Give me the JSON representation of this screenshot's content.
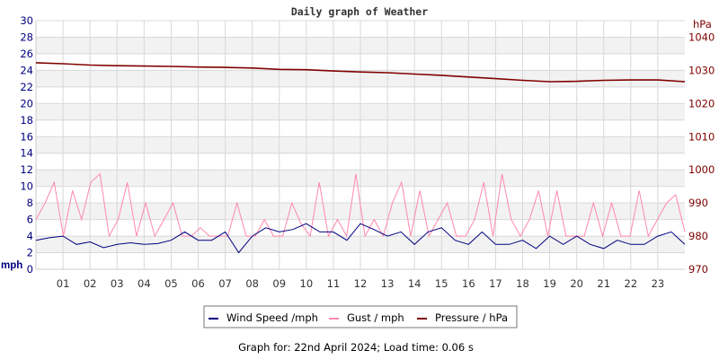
{
  "chart_data": {
    "type": "line",
    "title": "Daily graph of Weather",
    "ylabel_left": "mph",
    "ylabel_right": "hPa",
    "ylim_left": [
      0,
      30
    ],
    "ylim_right": [
      970,
      1045
    ],
    "yticks_left": [
      "0",
      "2",
      "4",
      "6",
      "8",
      "10",
      "12",
      "14",
      "16",
      "18",
      "20",
      "22",
      "24",
      "26",
      "28",
      "30"
    ],
    "yticks_right": [
      "970",
      "980",
      "990",
      "1000",
      "1010",
      "1020",
      "1030",
      "1040"
    ],
    "xticks": [
      "01",
      "02",
      "03",
      "04",
      "05",
      "06",
      "07",
      "08",
      "09",
      "10",
      "11",
      "12",
      "13",
      "14",
      "15",
      "16",
      "17",
      "18",
      "19",
      "20",
      "21",
      "22",
      "23"
    ],
    "xlim_hours": [
      0,
      24
    ],
    "grid": true,
    "legend_position": "bottom",
    "series": [
      {
        "name": "Wind Speed /mph",
        "color": "#000080",
        "axis": "left",
        "values": [
          3.5,
          3.8,
          4,
          3,
          3.3,
          2.6,
          3,
          3.2,
          3,
          3.1,
          3.5,
          4.5,
          3.5,
          3.5,
          4.5,
          2,
          4,
          5,
          4.5,
          4.8,
          5.5,
          4.5,
          4.5,
          3.5,
          5.5,
          4.8,
          4,
          4.5,
          3,
          4.5,
          5,
          3.5,
          3,
          4.5,
          3,
          3,
          3.5,
          2.5,
          4,
          3,
          4,
          3,
          2.5,
          3.5,
          3,
          3,
          4,
          4.5,
          3
        ]
      },
      {
        "name": "Gust / mph",
        "color": "#ff88aa",
        "axis": "left",
        "values": [
          6,
          8,
          10.5,
          4,
          9.5,
          6,
          10.5,
          11.5,
          4,
          6,
          10.5,
          4,
          8,
          4,
          6,
          8,
          4,
          4,
          5,
          4,
          4,
          4,
          8,
          4,
          4,
          6,
          4,
          4,
          8,
          5.5,
          4,
          10.5,
          4,
          6,
          4,
          11.5,
          4,
          6,
          4,
          8,
          10.5,
          4,
          9.5,
          4,
          6,
          8,
          4,
          4,
          6,
          10.5,
          4,
          11.5,
          6,
          4,
          6,
          9.5,
          4,
          9.5,
          4,
          4,
          4,
          8,
          4,
          8,
          4,
          4,
          9.5,
          4,
          6,
          8,
          9,
          4.5
        ]
      },
      {
        "name": "Pressure / hPa",
        "color": "#800000",
        "axis": "right",
        "values": [
          1032.3,
          1032,
          1031.6,
          1031.4,
          1031.3,
          1031.2,
          1031,
          1030.9,
          1030.7,
          1030.3,
          1030.2,
          1029.8,
          1029.5,
          1029.3,
          1028.9,
          1028.5,
          1028,
          1027.5,
          1027,
          1026.6,
          1026.7,
          1027,
          1027.1,
          1027.1,
          1026.6
        ]
      }
    ]
  },
  "footer": "Graph for: 22nd April 2024; Load time: 0.06 s"
}
